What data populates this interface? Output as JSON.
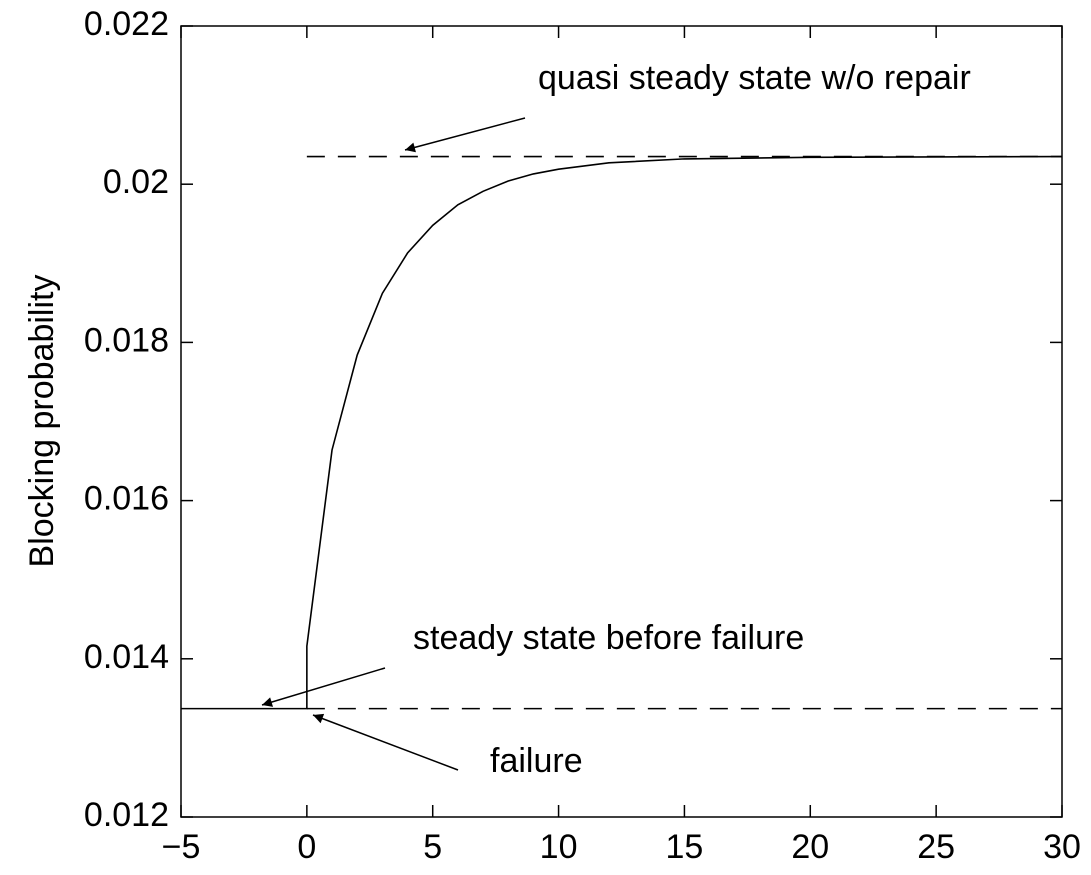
{
  "chart_data": {
    "type": "line",
    "ylabel": "Blocking probability",
    "xlim": [
      -5,
      30
    ],
    "ylim": [
      0.012,
      0.022
    ],
    "xticks": [
      {
        "value": -5,
        "label": "−5"
      },
      0,
      5,
      10,
      15,
      20,
      25,
      30
    ],
    "yticks": [
      0.012,
      0.014,
      0.016,
      0.018,
      0.02,
      0.022
    ],
    "series": [
      {
        "color": "#000000",
        "linestyle": "solid",
        "x": [
          -5,
          0,
          0,
          1,
          2,
          3,
          4,
          5,
          6,
          7,
          8,
          9,
          10,
          12,
          15,
          20,
          30
        ],
        "values": [
          0.01337,
          0.01337,
          0.01416,
          0.01664,
          0.01784,
          0.01862,
          0.01913,
          0.01948,
          0.01974,
          0.01991,
          0.02004,
          0.02013,
          0.02019,
          0.02027,
          0.02032,
          0.02034,
          0.02035
        ]
      },
      {
        "color": "#000000",
        "linestyle": "dashed",
        "x": [
          0,
          30
        ],
        "values": [
          0.01337,
          0.01337
        ]
      },
      {
        "color": "#000000",
        "linestyle": "dashed",
        "x": [
          0,
          30
        ],
        "values": [
          0.02035,
          0.02035
        ]
      }
    ],
    "annotations": [
      "quasi steady state w/o repair",
      "steady state before failure",
      "failure"
    ]
  }
}
